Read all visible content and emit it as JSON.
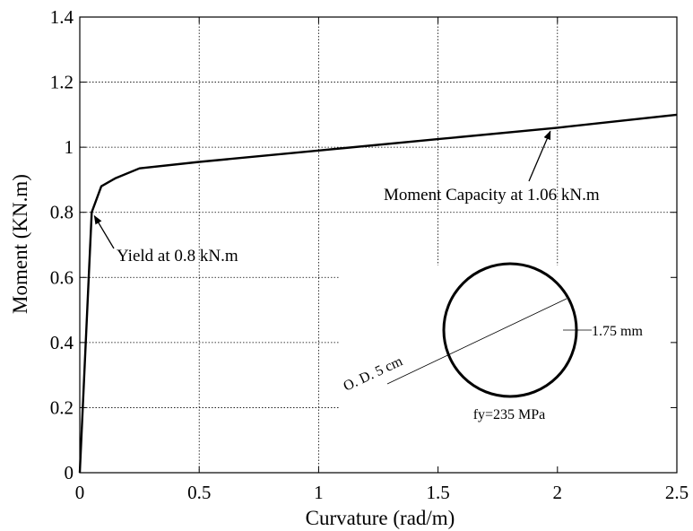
{
  "chart_data": {
    "type": "line",
    "title": "",
    "xlabel": "Curvature (rad/m)",
    "ylabel": "Moment (KN.m)",
    "xlim": [
      0,
      2.5
    ],
    "ylim": [
      0,
      1.4
    ],
    "grid": true,
    "x_ticks": [
      0,
      0.5,
      1,
      1.5,
      2,
      2.5
    ],
    "x_tick_labels": [
      "0",
      "0.5",
      "1",
      "1.5",
      "2",
      "2.5"
    ],
    "y_ticks": [
      0,
      0.2,
      0.4,
      0.6,
      0.8,
      1,
      1.2,
      1.4
    ],
    "y_tick_labels": [
      "0",
      "0.2",
      "0.4",
      "0.6",
      "0.8",
      "1",
      "1.2",
      "1.4"
    ],
    "series": [
      {
        "x": [
          0,
          0.05,
          0.09,
          0.15,
          0.25,
          0.5,
          1.0,
          1.5,
          2.0,
          2.5
        ],
        "y": [
          0,
          0.8,
          0.88,
          0.905,
          0.935,
          0.955,
          0.99,
          1.025,
          1.06,
          1.1
        ]
      }
    ],
    "annotations": [
      {
        "text": "Yield at 0.8 kN.m",
        "point": [
          0.05,
          0.8
        ]
      },
      {
        "text": "Moment Capacity at 1.06 kN.m",
        "point": [
          1.97,
          1.06
        ]
      }
    ],
    "inset": {
      "od_label": "O. D. 5 cm",
      "thickness_label": "1.75 mm",
      "fy_label": "fy=235 MPa"
    }
  }
}
